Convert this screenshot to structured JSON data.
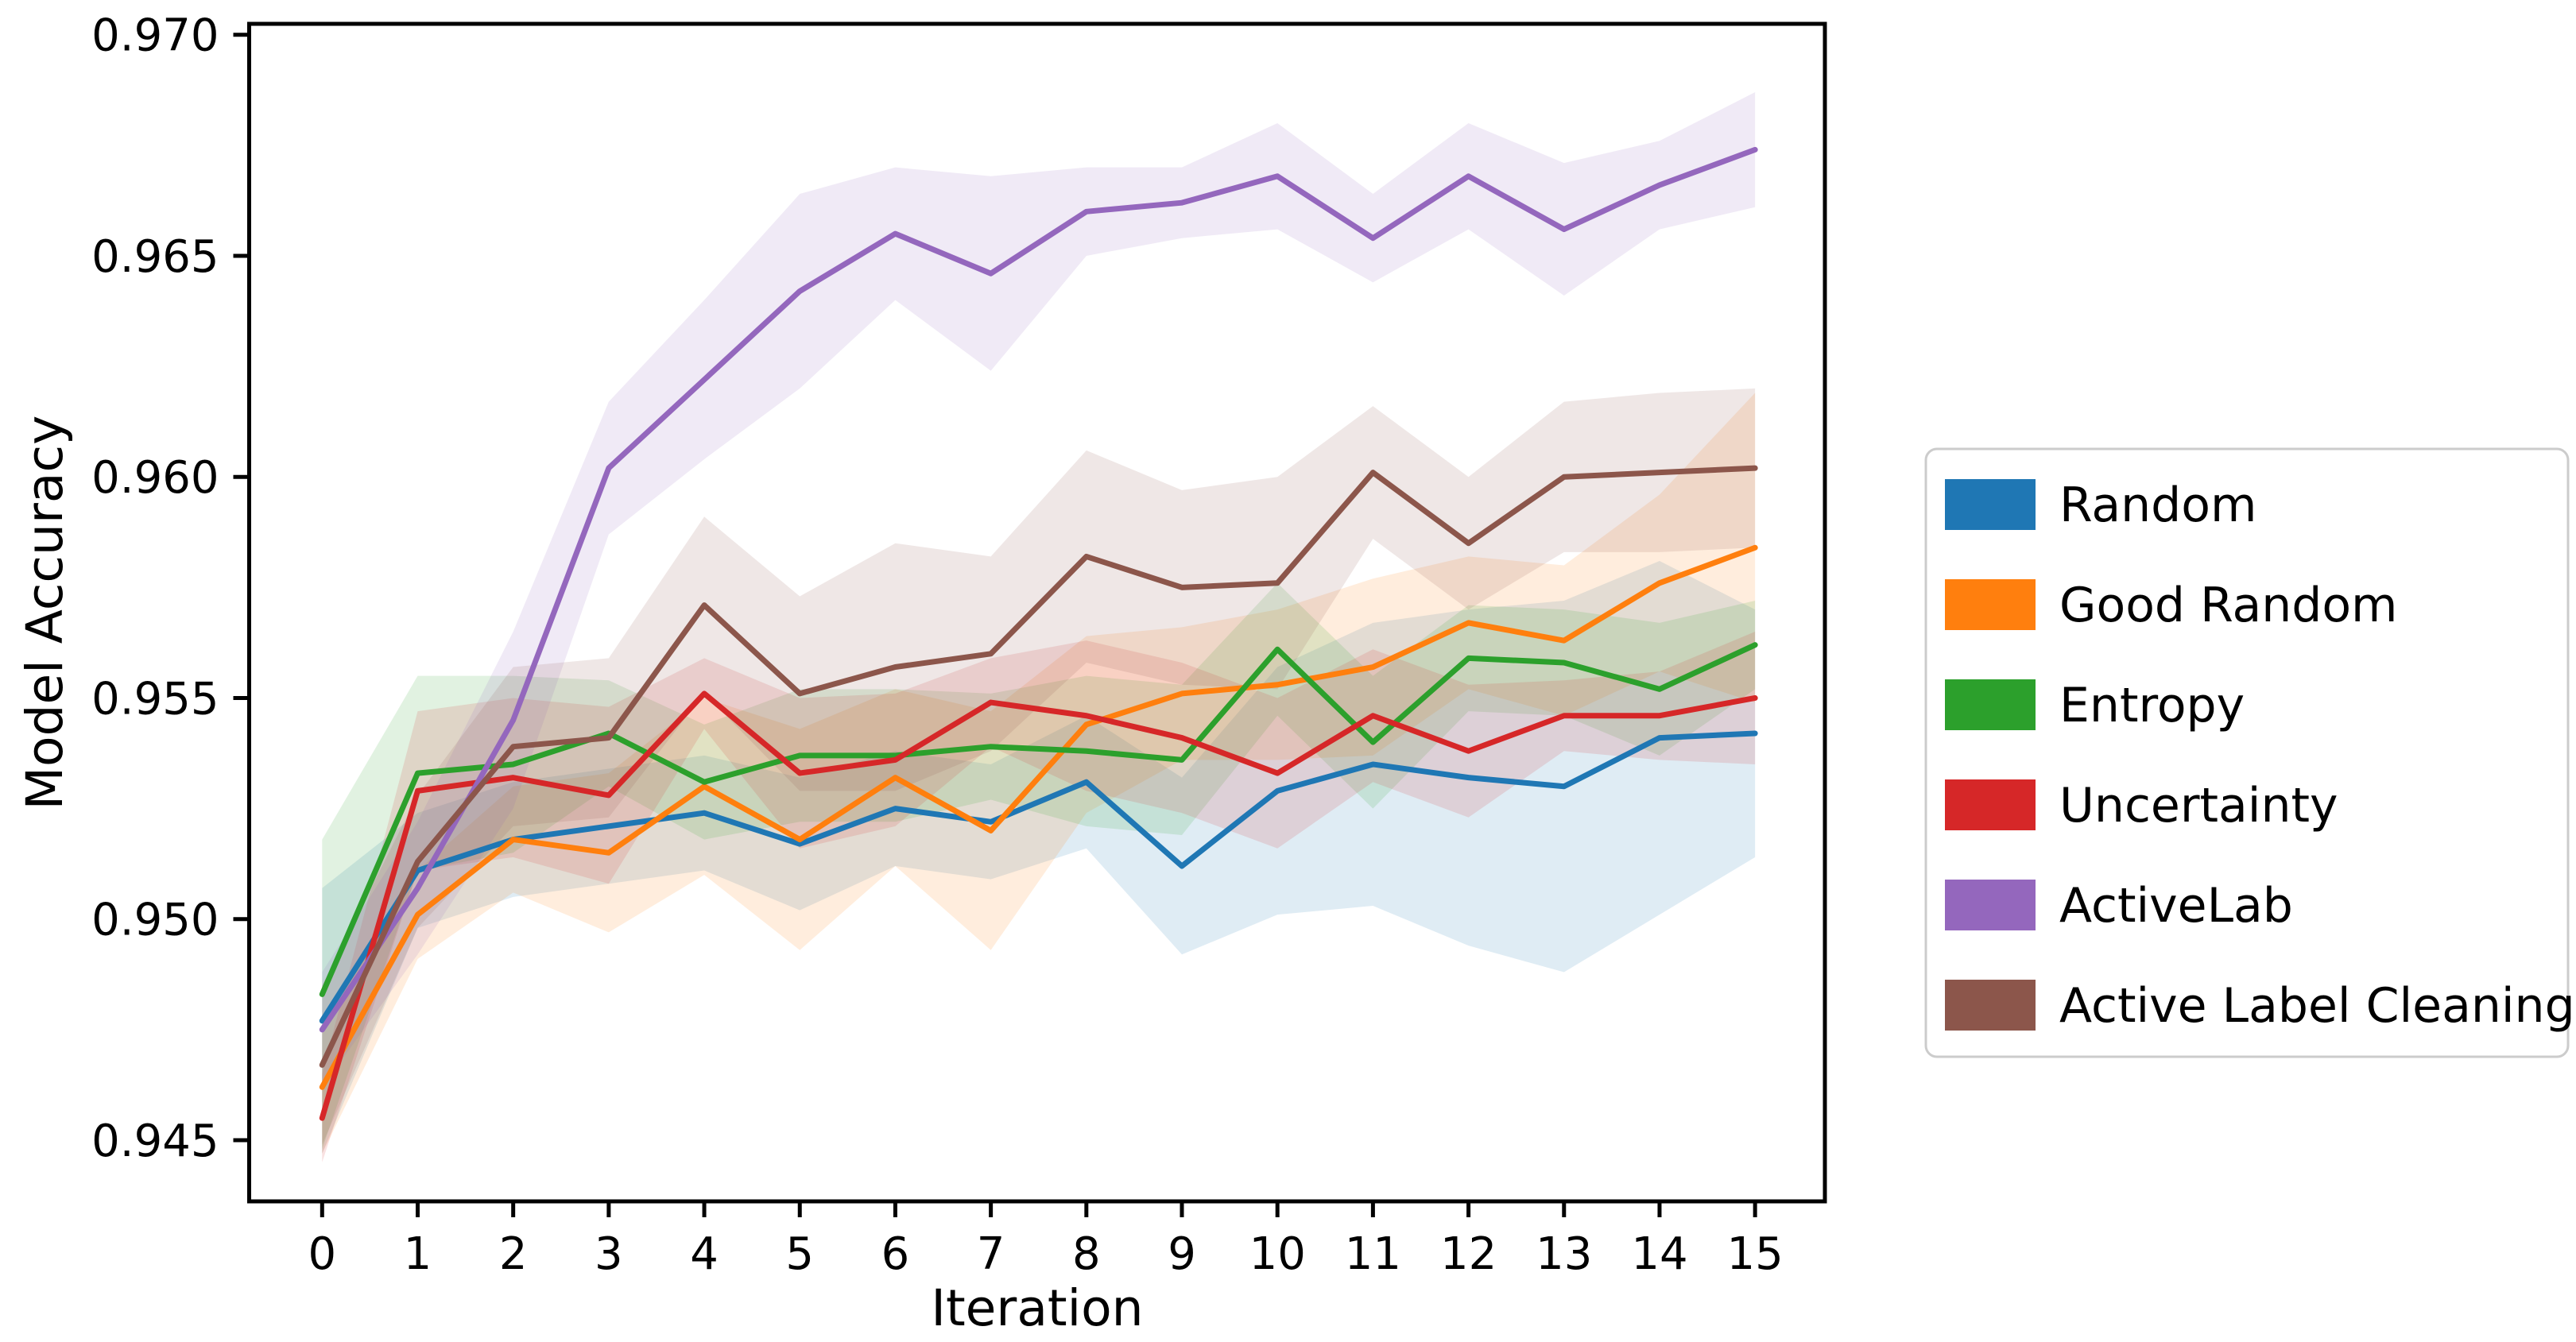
{
  "figure": {
    "background": "#ffffff",
    "axis_color": "#000000",
    "legend_border_color": "#cccccc"
  },
  "chart_data": {
    "type": "line",
    "title": "",
    "xlabel": "Iteration",
    "ylabel": "Model Accuracy",
    "x": [
      0,
      1,
      2,
      3,
      4,
      5,
      6,
      7,
      8,
      9,
      10,
      11,
      12,
      13,
      14,
      15
    ],
    "xtick_labels": [
      "0",
      "1",
      "2",
      "3",
      "4",
      "5",
      "6",
      "7",
      "8",
      "9",
      "10",
      "11",
      "12",
      "13",
      "14",
      "15"
    ],
    "yticks": [
      0.945,
      0.95,
      0.955,
      0.96,
      0.965,
      0.97
    ],
    "ytick_labels": [
      "0.945",
      "0.950",
      "0.955",
      "0.960",
      "0.965",
      "0.970"
    ],
    "xlim": [
      -0.77,
      15.73
    ],
    "ylim": [
      0.9436,
      0.9703
    ],
    "grid": false,
    "legend_position": "center right outside",
    "band_opacity": 0.14,
    "series": [
      {
        "name": "Random",
        "color": "#1f77b4",
        "values": [
          0.9477,
          0.9511,
          0.9518,
          0.9521,
          0.9524,
          0.9517,
          0.9525,
          0.9522,
          0.9531,
          0.9512,
          0.9529,
          0.9535,
          0.9532,
          0.953,
          0.9541,
          0.9542
        ],
        "band_halfwidth": [
          0.003,
          0.0013,
          0.0013,
          0.0013,
          0.0013,
          0.0015,
          0.0013,
          0.0013,
          0.0015,
          0.002,
          0.0028,
          0.0032,
          0.0038,
          0.0042,
          0.004,
          0.0028
        ]
      },
      {
        "name": "Good Random",
        "color": "#ff7f0e",
        "values": [
          0.9462,
          0.9501,
          0.9518,
          0.9515,
          0.953,
          0.9518,
          0.9532,
          0.952,
          0.9544,
          0.9551,
          0.9553,
          0.9557,
          0.9567,
          0.9563,
          0.9576,
          0.9584
        ],
        "band_halfwidth": [
          0.0015,
          0.001,
          0.0012,
          0.0018,
          0.002,
          0.0025,
          0.002,
          0.0027,
          0.002,
          0.0015,
          0.0017,
          0.002,
          0.0015,
          0.0017,
          0.002,
          0.0035
        ]
      },
      {
        "name": "Entropy",
        "color": "#2ca02c",
        "values": [
          0.9483,
          0.9533,
          0.9535,
          0.9542,
          0.9531,
          0.9537,
          0.9537,
          0.9539,
          0.9538,
          0.9536,
          0.9561,
          0.954,
          0.9559,
          0.9558,
          0.9552,
          0.9562
        ],
        "band_halfwidth": [
          0.0035,
          0.0022,
          0.002,
          0.0012,
          0.0013,
          0.0015,
          0.0015,
          0.0012,
          0.0017,
          0.0017,
          0.0015,
          0.0015,
          0.0012,
          0.0012,
          0.0015,
          0.001
        ]
      },
      {
        "name": "Uncertainty",
        "color": "#d62728",
        "values": [
          0.9455,
          0.9529,
          0.9532,
          0.9528,
          0.9551,
          0.9533,
          0.9536,
          0.9549,
          0.9546,
          0.9541,
          0.9533,
          0.9546,
          0.9538,
          0.9546,
          0.9546,
          0.955
        ],
        "band_halfwidth": [
          0.001,
          0.0018,
          0.0018,
          0.002,
          0.0008,
          0.0017,
          0.0015,
          0.001,
          0.0017,
          0.0017,
          0.0017,
          0.0015,
          0.0015,
          0.0008,
          0.001,
          0.0015
        ]
      },
      {
        "name": "ActiveLab",
        "color": "#9467bd",
        "values": [
          0.9475,
          0.9507,
          0.9545,
          0.9602,
          0.9622,
          0.9642,
          0.9655,
          0.9646,
          0.966,
          0.9662,
          0.9668,
          0.9654,
          0.9668,
          0.9656,
          0.9666,
          0.9674
        ],
        "band_halfwidth": [
          0.0013,
          0.0015,
          0.002,
          0.0015,
          0.0018,
          0.0022,
          0.0015,
          0.0022,
          0.001,
          0.0008,
          0.0012,
          0.001,
          0.0012,
          0.0015,
          0.001,
          0.0013
        ]
      },
      {
        "name": "Active Label Cleaning",
        "color": "#8c564b",
        "values": [
          0.9467,
          0.9513,
          0.9539,
          0.9541,
          0.9571,
          0.9551,
          0.9557,
          0.956,
          0.9582,
          0.9575,
          0.9576,
          0.9601,
          0.9585,
          0.96,
          0.9601,
          0.9602
        ],
        "band_halfwidth": [
          0.0018,
          0.0015,
          0.0018,
          0.0018,
          0.002,
          0.0022,
          0.0028,
          0.0022,
          0.0024,
          0.0022,
          0.0024,
          0.0015,
          0.0015,
          0.0017,
          0.0018,
          0.0018
        ]
      }
    ]
  }
}
